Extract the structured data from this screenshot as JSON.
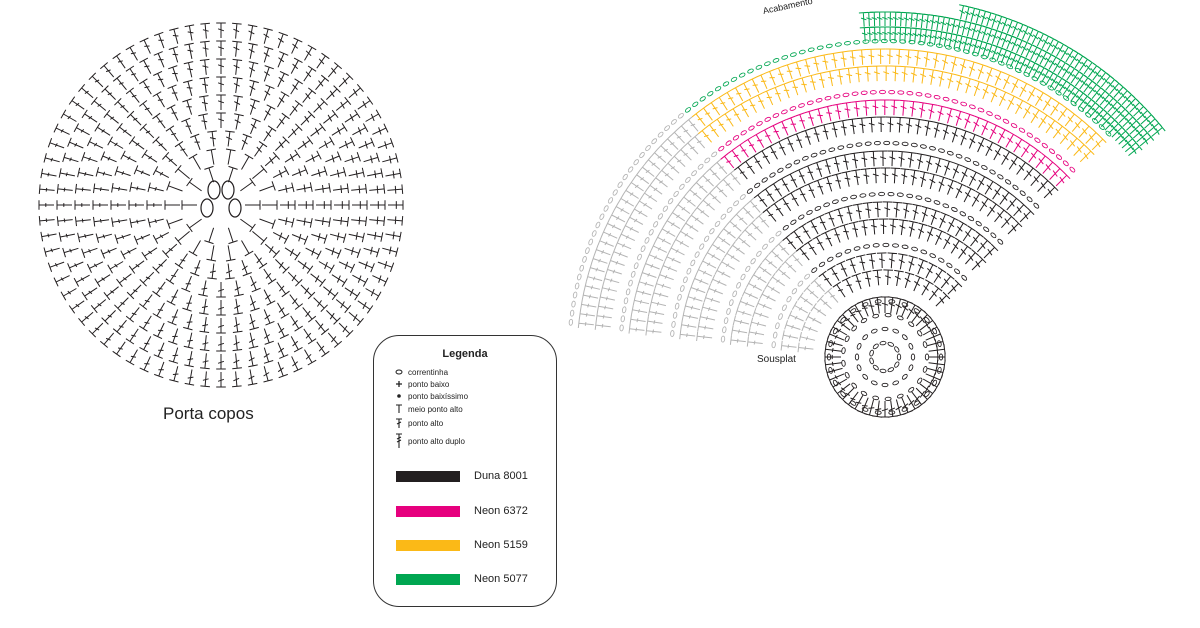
{
  "coaster": {
    "caption": "Porta copos"
  },
  "sousplat": {
    "label": "Sousplat",
    "finishing_label": "Acabamento"
  },
  "legend": {
    "title": "Legenda",
    "symbols": [
      {
        "icon": "chain-oval-icon",
        "label": "correntinha"
      },
      {
        "icon": "single-crochet-plus-icon",
        "label": "ponto baixo"
      },
      {
        "icon": "slip-stitch-dot-icon",
        "label": "ponto baixíssimo"
      },
      {
        "icon": "half-double-crochet-t-icon",
        "label": "meio ponto alto"
      },
      {
        "icon": "double-crochet-icon",
        "label": "ponto alto"
      },
      {
        "icon": "treble-crochet-icon",
        "label": "ponto alto duplo"
      }
    ],
    "colors": [
      {
        "name": "Duna 8001",
        "color": "#231f20"
      },
      {
        "name": "Neon 6372",
        "color": "#e6007e"
      },
      {
        "name": "Neon 5159",
        "color": "#fbb917"
      },
      {
        "name": "Neon 5077",
        "color": "#00a651"
      }
    ]
  },
  "stitch_colors": {
    "dark": "#231f20",
    "grey": "#b4b4b4",
    "pink": "#e6007e",
    "yellow": "#fbb917",
    "green": "#00a651"
  }
}
